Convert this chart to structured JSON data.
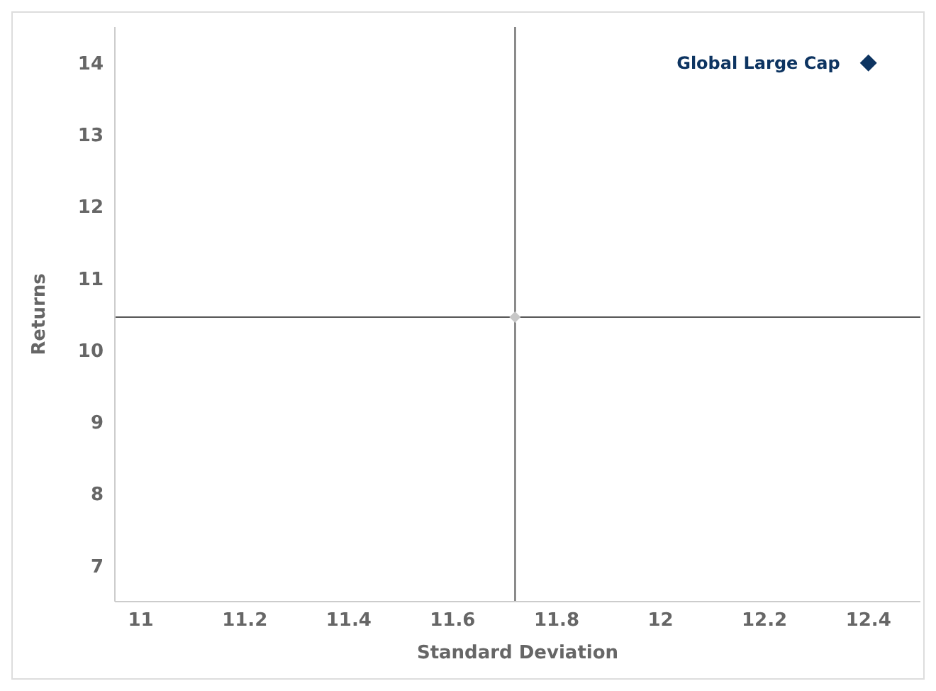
{
  "chart_data": {
    "type": "scatter",
    "xlabel": "Standard Deviation",
    "ylabel": "Returns",
    "marker": "diamond",
    "grid": false,
    "legend": false,
    "xlim": [
      10.95,
      12.5
    ],
    "xticks": [
      11,
      11.2,
      11.4,
      11.6,
      11.8,
      12,
      12.2,
      12.4
    ],
    "ylim": [
      6.5,
      14.5
    ],
    "yticks": [
      7,
      8,
      9,
      10,
      11,
      12,
      13,
      14
    ],
    "series": [
      {
        "name": "Global Large Cap",
        "color": "#0d3461",
        "x": [
          12.4
        ],
        "values": [
          14.0
        ]
      },
      {
        "color": "#c8c8c8",
        "x": [
          11.72
        ],
        "values": [
          10.46
        ]
      }
    ],
    "ref_lines": [
      {
        "axis": "x",
        "value": 11.72,
        "color": "#555555"
      },
      {
        "axis": "y",
        "value": 10.46,
        "color": "#555555"
      }
    ]
  }
}
